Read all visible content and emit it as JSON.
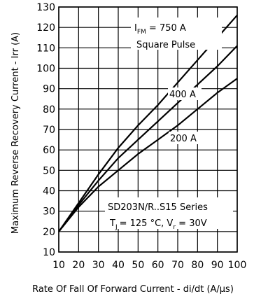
{
  "chart_data": {
    "type": "line",
    "xlabel": "Rate Of Fall Of Forward Current - di/dt (A/µs)",
    "ylabel": "Maximum Reverse Recovery Current - Irr (A)",
    "xlim": [
      10,
      100
    ],
    "ylim": [
      10,
      130
    ],
    "xticks": [
      10,
      20,
      30,
      40,
      50,
      60,
      70,
      80,
      90,
      100
    ],
    "yticks": [
      10,
      20,
      30,
      40,
      50,
      60,
      70,
      80,
      90,
      100,
      110,
      120,
      130
    ],
    "grid": true,
    "series": [
      {
        "name": "I_FM = 750 A",
        "x": [
          10,
          20,
          30,
          40,
          50,
          60,
          70,
          80,
          90,
          100
        ],
        "y": [
          20,
          34,
          48,
          61,
          72,
          82,
          93,
          104,
          115,
          126
        ]
      },
      {
        "name": "400 A",
        "x": [
          10,
          20,
          30,
          40,
          50,
          60,
          70,
          80,
          90,
          100
        ],
        "y": [
          20,
          33,
          45,
          56,
          65,
          74,
          83,
          92,
          101,
          111
        ]
      },
      {
        "name": "200 A",
        "x": [
          10,
          20,
          30,
          40,
          50,
          60,
          70,
          80,
          90,
          100
        ],
        "y": [
          20,
          32,
          42,
          50,
          58,
          65,
          72,
          80,
          88,
          95
        ]
      }
    ],
    "annotations": {
      "series_750": {
        "main": "I",
        "sub": "FM",
        "rest": " = 750 A"
      },
      "pulse": "Square Pulse",
      "series_400": "400 A",
      "series_200": "200 A",
      "device": "SD203N/R..S15 Series",
      "conditions": {
        "tj_main": "T",
        "tj_sub": "J",
        "tj_rest": "= 125 °C, V",
        "vr_sub": "r",
        "vr_rest": " = 30V"
      }
    }
  }
}
